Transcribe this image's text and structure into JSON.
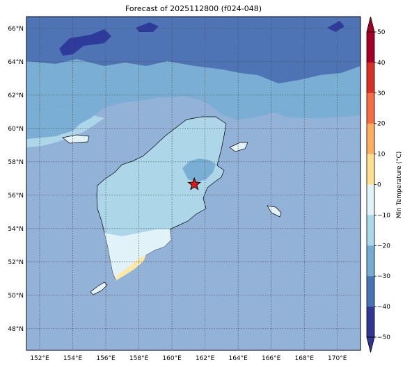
{
  "title": "Forecast of 2025112800 (f024-048)",
  "map": {
    "lon_range": [
      151.2,
      171.4
    ],
    "lat_range": [
      46.7,
      66.7
    ],
    "lon_ticks": [
      "152°E",
      "154°E",
      "156°E",
      "158°E",
      "160°E",
      "162°E",
      "164°E",
      "166°E",
      "168°E",
      "170°E"
    ],
    "lat_ticks": [
      "48°N",
      "50°N",
      "52°N",
      "54°N",
      "56°N",
      "58°N",
      "60°N",
      "62°N",
      "64°N",
      "66°N"
    ],
    "marker": {
      "symbol": "red-star",
      "lon": 161.35,
      "lat": 56.65,
      "color": "#e41a1c"
    }
  },
  "colorbar": {
    "label": "Min Temperature (°C)",
    "ticks": [
      "50",
      "40",
      "30",
      "20",
      "10",
      "0",
      "−10",
      "−20",
      "−30",
      "−40",
      "−50"
    ],
    "colors": [
      "#a50026",
      "#d73027",
      "#f46d43",
      "#fdae61",
      "#fee090",
      "#e0f3f8",
      "#abd9e9",
      "#74add1",
      "#4575b4",
      "#313695"
    ]
  },
  "field_colors": {
    "ocean": "#92b2d8",
    "very_cold": "#2e3b9a",
    "cold": "#4f74b5",
    "cool": "#7aaed4",
    "mild": "#add7e8",
    "near_zero": "#e1f3f8",
    "positive": "#fde9a3"
  }
}
